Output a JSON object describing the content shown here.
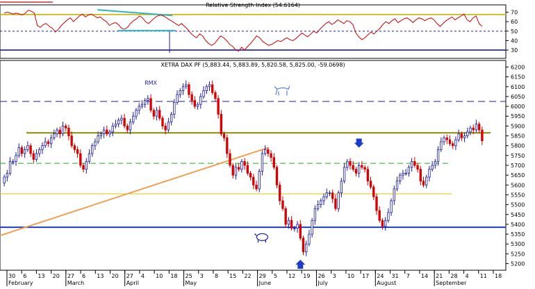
{
  "chart_data": [
    {
      "panel": "rsi",
      "type": "line",
      "title": "Relative Strength Index (54.6164)",
      "ylim": [
        22,
        77
      ],
      "y_ticks": [
        30,
        40,
        50,
        60,
        70
      ],
      "series": [
        {
          "color": "#cc0000",
          "values": [
            69,
            70,
            69,
            68,
            69,
            68,
            67,
            69,
            72,
            71,
            69,
            56,
            54,
            57,
            58,
            55,
            53,
            49,
            52,
            56,
            59,
            62,
            64,
            60,
            63,
            66,
            68,
            65,
            67,
            68,
            66,
            64,
            65,
            62,
            60,
            56,
            58,
            59,
            57,
            53,
            52,
            54,
            58,
            61,
            63,
            66,
            64,
            60,
            58,
            61,
            64,
            66,
            67,
            66,
            64,
            62,
            60,
            58,
            56,
            58,
            55,
            52,
            48,
            45,
            43,
            47,
            45,
            40,
            37,
            35,
            37,
            41,
            45,
            43,
            40,
            36,
            34,
            30,
            29,
            33,
            30,
            34,
            37,
            41,
            45,
            43,
            39,
            37,
            35,
            36,
            38,
            40,
            39,
            41,
            43,
            41,
            40,
            42,
            45,
            48,
            46,
            44,
            47,
            50,
            48,
            52,
            55,
            58,
            60,
            57,
            59,
            62,
            60,
            58,
            61,
            60,
            57,
            48,
            44,
            41,
            43,
            46,
            49,
            47,
            50,
            53,
            57,
            60,
            58,
            61,
            63,
            59,
            61,
            63,
            64,
            62,
            59,
            62,
            64,
            63,
            61,
            63,
            64,
            62,
            58,
            55,
            58,
            61,
            63,
            65,
            62,
            64,
            66,
            68,
            62,
            60,
            64,
            66,
            58,
            55
          ]
        }
      ],
      "reference_lines": [
        {
          "value": 67.5,
          "color": "#c8b400",
          "style": "solid"
        },
        {
          "value": 50,
          "color": "#1a1aaa",
          "style": "dashed"
        },
        {
          "value": 30,
          "color": "#1a1aaa",
          "style": "solid"
        }
      ],
      "annotation_segments": [
        {
          "color": "#2db5bf",
          "points": [
            [
              31,
              72.5
            ],
            [
              56,
              66.5
            ]
          ]
        },
        {
          "color": "#2db5bf",
          "points": [
            [
              38,
              50.5
            ],
            [
              57,
              50.5
            ]
          ]
        }
      ]
    },
    {
      "panel": "price",
      "type": "candlestick",
      "title": "XETRA DAX PF (5,883.44, 5,883.89, 5,820.58, 5,825.00, -59.0698)",
      "ylim": [
        5170,
        6230
      ],
      "y_ticks": [
        5200,
        5250,
        5300,
        5350,
        5400,
        5450,
        5500,
        5550,
        5600,
        5650,
        5700,
        5750,
        5800,
        5850,
        5900,
        5950,
        6000,
        6050,
        6100,
        6150,
        6200
      ],
      "x_tick_labels": [
        "30",
        "6",
        "13",
        "20",
        "27",
        "6",
        "13",
        "20",
        "27",
        "4",
        "10",
        "18",
        "25",
        "3",
        "8",
        "15",
        "22",
        "29",
        "5",
        "12",
        "19",
        "26",
        "3",
        "10",
        "17",
        "24",
        "31",
        "7",
        "14",
        "21",
        "28",
        "4",
        "11",
        "18"
      ],
      "month_labels": [
        {
          "text": "February",
          "tick_index": 0
        },
        {
          "text": "March",
          "tick_index": 4
        },
        {
          "text": "April",
          "tick_index": 8
        },
        {
          "text": "May",
          "tick_index": 12
        },
        {
          "text": "June",
          "tick_index": 17
        },
        {
          "text": "July",
          "tick_index": 21
        },
        {
          "text": "August",
          "tick_index": 25
        },
        {
          "text": "September",
          "tick_index": 29
        }
      ],
      "close": [
        5640,
        5660,
        5720,
        5720,
        5750,
        5790,
        5760,
        5780,
        5800,
        5760,
        5730,
        5760,
        5780,
        5800,
        5820,
        5810,
        5840,
        5860,
        5880,
        5860,
        5900,
        5890,
        5850,
        5800,
        5780,
        5760,
        5700,
        5680,
        5720,
        5760,
        5800,
        5820,
        5850,
        5860,
        5880,
        5860,
        5870,
        5900,
        5910,
        5930,
        5940,
        5900,
        5880,
        5920,
        5950,
        5980,
        6000,
        6010,
        6030,
        6040,
        5980,
        5950,
        5980,
        5940,
        5900,
        5880,
        5920,
        5960,
        6020,
        6060,
        6080,
        6100,
        6110,
        6060,
        6030,
        6000,
        6010,
        6050,
        6080,
        6100,
        6110,
        6070,
        6040,
        5960,
        5860,
        5840,
        5760,
        5700,
        5650,
        5690,
        5680,
        5720,
        5700,
        5660,
        5640,
        5600,
        5580,
        5670,
        5760,
        5780,
        5760,
        5740,
        5690,
        5600,
        5520,
        5480,
        5400,
        5420,
        5380,
        5380,
        5400,
        5330,
        5260,
        5300,
        5350,
        5420,
        5480,
        5500,
        5520,
        5540,
        5560,
        5560,
        5530,
        5480,
        5560,
        5620,
        5690,
        5720,
        5700,
        5680,
        5660,
        5700,
        5690,
        5680,
        5620,
        5590,
        5540,
        5470,
        5420,
        5390,
        5420,
        5460,
        5520,
        5580,
        5620,
        5650,
        5660,
        5660,
        5690,
        5720,
        5700,
        5680,
        5620,
        5600,
        5640,
        5680,
        5700,
        5720,
        5780,
        5820,
        5840,
        5830,
        5810,
        5800,
        5830,
        5860,
        5840,
        5850,
        5870,
        5890,
        5880,
        5910,
        5880,
        5825
      ],
      "bodies": [
        30,
        40,
        20,
        20,
        30,
        50,
        25,
        35,
        20,
        30,
        35,
        25,
        30,
        20,
        30,
        25,
        20,
        30,
        20,
        30,
        25,
        20,
        40,
        50,
        30,
        25,
        50,
        30,
        35,
        30,
        40,
        20,
        30,
        20,
        25,
        30,
        20,
        30,
        20,
        25,
        20,
        40,
        30,
        30,
        25,
        30,
        20,
        20,
        25,
        20,
        60,
        40,
        30,
        40,
        30,
        25,
        40,
        30,
        50,
        40,
        20,
        30,
        25,
        50,
        40,
        30,
        20,
        30,
        30,
        20,
        20,
        50,
        40,
        80,
        100,
        40,
        80,
        60,
        50,
        40,
        20,
        40,
        30,
        40,
        20,
        40,
        30,
        70,
        80,
        20,
        30,
        25,
        50,
        80,
        70,
        40,
        80,
        20,
        40,
        30,
        20,
        60,
        60,
        40,
        40,
        60,
        50,
        20,
        20,
        20,
        20,
        15,
        35,
        60,
        70,
        50,
        60,
        30,
        20,
        20,
        30,
        40,
        20,
        20,
        60,
        40,
        50,
        70,
        50,
        30,
        30,
        40,
        50,
        50,
        40,
        30,
        20,
        20,
        30,
        30,
        20,
        25,
        60,
        30,
        40,
        40,
        20,
        30,
        60,
        40,
        20,
        20,
        20,
        20,
        30,
        30,
        20,
        15,
        20,
        20,
        15,
        25,
        30,
        55
      ],
      "reference_lines": [
        {
          "value": 5865,
          "color": "#8a8a00",
          "style": "solid"
        },
        {
          "value": 6025,
          "color": "#1a1aaa",
          "style": "dashed"
        },
        {
          "value": 5710,
          "color": "#22aa22",
          "style": "dashed"
        },
        {
          "value": 5555,
          "color": "#e0c000",
          "style": "solid"
        },
        {
          "value": 5385,
          "color": "#1a3cc8",
          "style": "solid"
        }
      ],
      "trendline": {
        "color": "#f0a050",
        "points": [
          [
            -4,
            5330
          ],
          [
            90,
            5790
          ]
        ]
      },
      "annotations": [
        {
          "text": "RMX",
          "x_index": 50,
          "value": 6110
        },
        {
          "shape": "arrow-down",
          "x_index": 121,
          "value": 5815
        },
        {
          "shape": "arrow-up",
          "x_index": 101,
          "value": 5195
        },
        {
          "shape": "bull-icon",
          "x_index": 95,
          "value": 6080
        },
        {
          "shape": "bear-icon",
          "x_index": 88,
          "value": 5335
        }
      ]
    }
  ]
}
